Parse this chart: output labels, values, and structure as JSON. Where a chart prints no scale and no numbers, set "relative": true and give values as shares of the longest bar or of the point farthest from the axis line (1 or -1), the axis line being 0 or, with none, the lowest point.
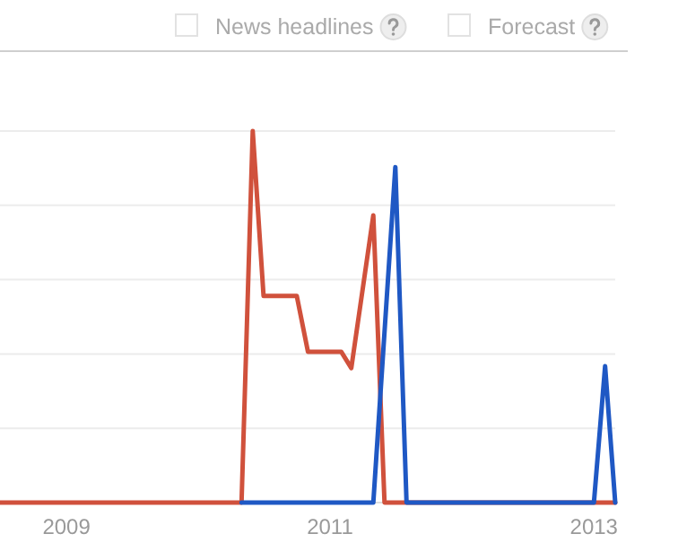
{
  "chart_data": {
    "type": "line",
    "relative": true,
    "grid": "y",
    "annotations": [
      "News headlines",
      "Forecast"
    ],
    "xlim": [
      "2008-07",
      "2013-03"
    ],
    "xticks": [
      {
        "value": "2009-01",
        "label": "2009"
      },
      {
        "value": "2011-01",
        "label": "2011"
      },
      {
        "value": "2013-01",
        "label": "2013"
      }
    ],
    "series": [
      {
        "color": "#d0513c",
        "x": [
          "2008-07",
          "2010-05",
          "2010-06",
          "2010-07",
          "2010-10",
          "2010-11",
          "2011-02",
          "2011-03",
          "2011-05",
          "2011-06",
          "2013-03"
        ],
        "values": [
          0,
          0,
          1,
          0.556,
          0.556,
          0.406,
          0.406,
          0.362,
          0.773,
          0,
          0
        ]
      },
      {
        "color": "#1f58c4",
        "x": [
          "2010-05",
          "2011-05",
          "2011-07",
          "2011-08",
          "2013-01",
          "2013-02",
          "2013-03"
        ],
        "values": [
          0,
          0,
          0.903,
          0,
          0,
          0.367,
          0
        ]
      }
    ]
  }
}
